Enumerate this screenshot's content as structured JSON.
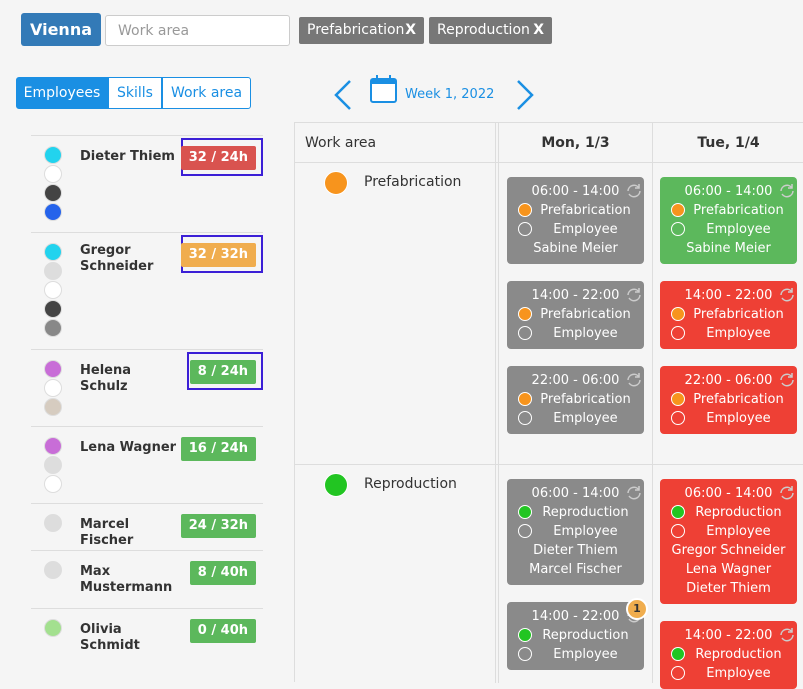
{
  "toolbar": {
    "location": "Vienna",
    "search_placeholder": "Work area",
    "filters": [
      {
        "label": "Prefabrication",
        "remove": "X"
      },
      {
        "label": "Reproduction",
        "remove": "X"
      }
    ]
  },
  "tabs": {
    "items": [
      "Employees",
      "Skills",
      "Work area"
    ],
    "active": 0
  },
  "week": {
    "day": "1",
    "label": "Week 1, 2022"
  },
  "employees": [
    {
      "name": "Dieter Thiem",
      "hours": "32 / 24h",
      "badge_color": "#d9534f",
      "highlight": true,
      "skills": [
        "#22d3ee",
        "#ffffff",
        "#444444",
        "#2563eb"
      ]
    },
    {
      "name": "Gregor Schneider",
      "hours": "32 / 32h",
      "badge_color": "#f0ad4e",
      "highlight": true,
      "skills": [
        "#22d3ee",
        "#dddddd",
        "#ffffff",
        "#444444",
        "#888888"
      ]
    },
    {
      "name": "Helena Schulz",
      "hours": "8 / 24h",
      "badge_color": "#5cb85c",
      "highlight": true,
      "skills": [
        "#c86dd7",
        "#ffffff",
        "#d6ccc0"
      ]
    },
    {
      "name": "Lena Wagner",
      "hours": "16 / 24h",
      "badge_color": "#5cb85c",
      "highlight": false,
      "skills": [
        "#c86dd7",
        "#dddddd",
        "#ffffff"
      ]
    },
    {
      "name": "Marcel Fischer",
      "hours": "24 / 32h",
      "badge_color": "#5cb85c",
      "highlight": false,
      "skills": [
        "#dddddd"
      ]
    },
    {
      "name": "Max Mustermann",
      "hours": "8 / 40h",
      "badge_color": "#5cb85c",
      "highlight": false,
      "skills": [
        "#dddddd"
      ]
    },
    {
      "name": "Olivia Schmidt",
      "hours": "0 / 40h",
      "badge_color": "#5cb85c",
      "highlight": false,
      "skills": [
        "#a3e08f"
      ]
    }
  ],
  "schedule": {
    "header": "Work area",
    "days": [
      "Mon, 1/3",
      "Tue, 1/4"
    ],
    "areas": [
      {
        "name": "Prefabrication",
        "color": "#f7941d",
        "cells": [
          [
            {
              "time": "06:00 - 14:00",
              "area": "Prefabrication",
              "role": "Employee",
              "names": [
                "Sabine Meier"
              ],
              "color": "#8a8a8a"
            },
            {
              "time": "14:00 - 22:00",
              "area": "Prefabrication",
              "role": "Employee",
              "names": [],
              "color": "#8a8a8a"
            },
            {
              "time": "22:00 - 06:00",
              "area": "Prefabrication",
              "role": "Employee",
              "names": [],
              "color": "#8a8a8a"
            }
          ],
          [
            {
              "time": "06:00 - 14:00",
              "area": "Prefabrication",
              "role": "Employee",
              "names": [
                "Sabine Meier"
              ],
              "color": "#5cb85c"
            },
            {
              "time": "14:00 - 22:00",
              "area": "Prefabrication",
              "role": "Employee",
              "names": [],
              "color": "#ee4035"
            },
            {
              "time": "22:00 - 06:00",
              "area": "Prefabrication",
              "role": "Employee",
              "names": [],
              "color": "#ee4035"
            }
          ]
        ]
      },
      {
        "name": "Reproduction",
        "color": "#22c522",
        "cells": [
          [
            {
              "time": "06:00 - 14:00",
              "area": "Reproduction",
              "role": "Employee",
              "names": [
                "Dieter Thiem",
                "Marcel Fischer"
              ],
              "color": "#8a8a8a"
            },
            {
              "time": "14:00 - 22:00",
              "area": "Reproduction",
              "role": "Employee",
              "names": [],
              "color": "#8a8a8a",
              "badge": "1"
            }
          ],
          [
            {
              "time": "06:00 - 14:00",
              "area": "Reproduction",
              "role": "Employee",
              "names": [
                "Gregor Schneider",
                "Lena Wagner",
                "Dieter Thiem"
              ],
              "color": "#ee4035"
            },
            {
              "time": "14:00 - 22:00",
              "area": "Reproduction",
              "role": "Employee",
              "names": [],
              "color": "#ee4035"
            }
          ]
        ]
      }
    ]
  }
}
